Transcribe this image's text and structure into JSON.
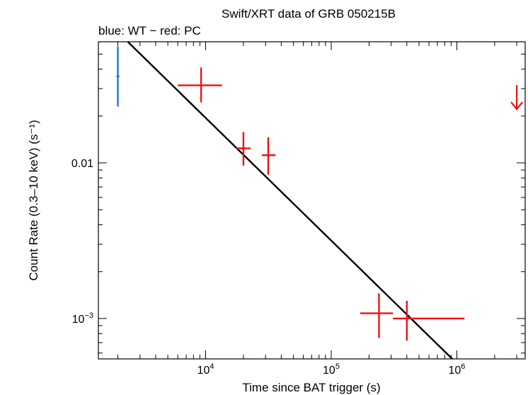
{
  "chart_data": {
    "type": "scatter",
    "title": "Swift/XRT data of GRB 050215B",
    "subtitle": "blue: WT − red: PC",
    "xlabel": "Time since BAT trigger (s)",
    "ylabel": "Count Rate (0.3–10 keV) (s⁻¹)",
    "xscale": "log",
    "yscale": "log",
    "xlim": [
      1400,
      3500000
    ],
    "ylim": [
      0.00055,
      0.06
    ],
    "x_ticks": [
      {
        "value": 10000,
        "base": "10",
        "exp": "4"
      },
      {
        "value": 100000,
        "base": "10",
        "exp": "5"
      },
      {
        "value": 1000000,
        "base": "10",
        "exp": "6"
      }
    ],
    "y_ticks": [
      {
        "value": 0.01,
        "text": "0.01"
      },
      {
        "value": 0.001,
        "base": "10",
        "exp": "−3"
      }
    ],
    "series": [
      {
        "color": "#1f77e0",
        "points": [
          {
            "x": 2000,
            "xlo": 1950,
            "xhi": 2060,
            "y": 0.036,
            "ylo": 0.023,
            "yhi": 0.056
          }
        ]
      },
      {
        "color": "#ee1111",
        "points": [
          {
            "x": 9200,
            "xlo": 6000,
            "xhi": 13500,
            "y": 0.0315,
            "ylo": 0.0245,
            "yhi": 0.041
          },
          {
            "x": 20000,
            "xlo": 17500,
            "xhi": 22800,
            "y": 0.0124,
            "ylo": 0.0096,
            "yhi": 0.0158
          },
          {
            "x": 31500,
            "xlo": 28000,
            "xhi": 36000,
            "y": 0.0112,
            "ylo": 0.0084,
            "yhi": 0.0146
          },
          {
            "x": 240000,
            "xlo": 170000,
            "xhi": 310000,
            "y": 0.00108,
            "ylo": 0.00075,
            "yhi": 0.00145
          },
          {
            "x": 400000,
            "xlo": 310000,
            "xhi": 1150000,
            "y": 0.001,
            "ylo": 0.00072,
            "yhi": 0.0013
          }
        ],
        "upper_limits": [
          {
            "x": 3000000,
            "y": 0.027
          }
        ]
      }
    ],
    "model_line": {
      "color": "#000000",
      "x1": 2400,
      "y1": 0.06,
      "x2": 920000,
      "y2": 0.00055
    },
    "grid": false,
    "legend": "none"
  }
}
